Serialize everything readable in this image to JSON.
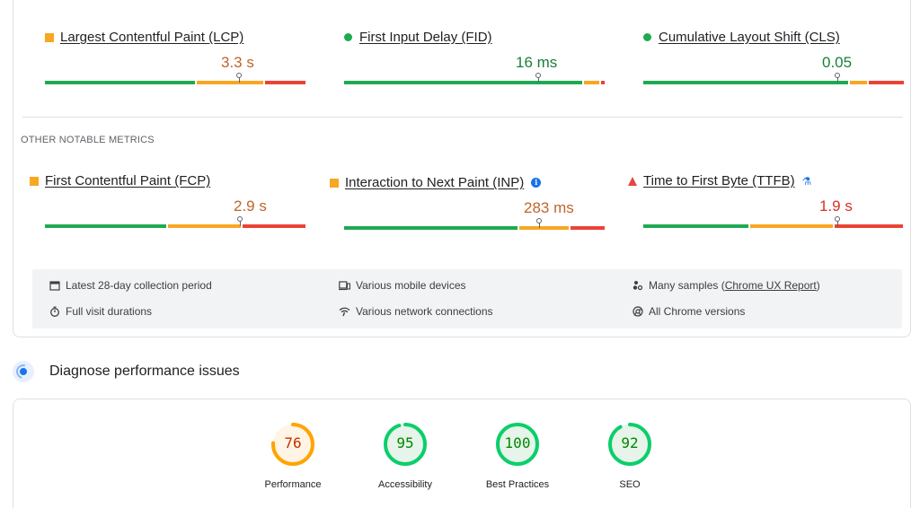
{
  "core_metrics": [
    {
      "indicator": "square-orange",
      "label": "Largest Contentful Paint (LCP)",
      "value": "3.3 s",
      "status": "orange"
    },
    {
      "indicator": "circle-green",
      "label": "First Input Delay (FID)",
      "value": "16 ms",
      "status": "green"
    },
    {
      "indicator": "circle-green",
      "label": "Cumulative Layout Shift (CLS)",
      "value": "0.05",
      "status": "green"
    }
  ],
  "other_title": "OTHER NOTABLE METRICS",
  "other_metrics": [
    {
      "indicator": "square-orange",
      "label": "First Contentful Paint (FCP)",
      "value": "2.9 s",
      "status": "orange"
    },
    {
      "indicator": "square-orange",
      "label": "Interaction to Next Paint (INP)",
      "value": "283 ms",
      "status": "orange",
      "info_icon": "info-icon"
    },
    {
      "indicator": "triangle-red",
      "label": "Time to First Byte (TTFB)",
      "value": "1.9 s",
      "status": "red",
      "info_icon": "flask-icon"
    }
  ],
  "info": {
    "collection_period": "Latest 28-day collection period",
    "visit_durations": "Full visit durations",
    "devices": "Various mobile devices",
    "network": "Various network connections",
    "samples_prefix": "Many samples (",
    "samples_link": "Chrome UX Report",
    "samples_suffix": ")",
    "chrome_versions": "All Chrome versions"
  },
  "diagnose": {
    "title": "Diagnose performance issues"
  },
  "scores": [
    {
      "label": "Performance",
      "score": "76",
      "fraction": 0.76,
      "status": "orange"
    },
    {
      "label": "Accessibility",
      "score": "95",
      "fraction": 0.95,
      "status": "green"
    },
    {
      "label": "Best Practices",
      "score": "100",
      "fraction": 1.0,
      "status": "green"
    },
    {
      "label": "SEO",
      "score": "92",
      "fraction": 0.92,
      "status": "green"
    }
  ],
  "colors": {
    "good": "#1eaa52",
    "needs_improvement": "#f7a722",
    "poor": "#ea4335",
    "link_blue": "#1a73e8"
  }
}
